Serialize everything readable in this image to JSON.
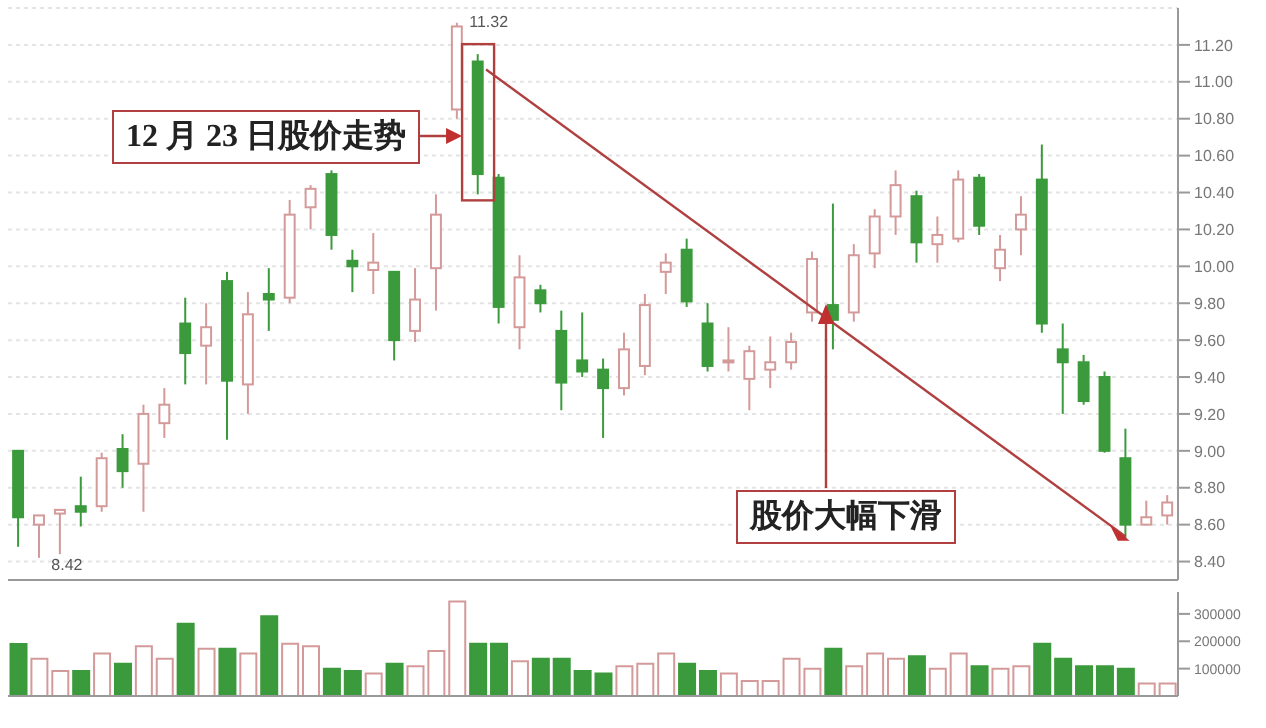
{
  "chart_data": [
    {
      "type": "candlestick",
      "categories": [
        null,
        null,
        null,
        null,
        null,
        null,
        null,
        null,
        null,
        null,
        null,
        null,
        null,
        null,
        null,
        null,
        null,
        null,
        null,
        null,
        null,
        null,
        null,
        null,
        null,
        null,
        null,
        null,
        null,
        null,
        null,
        null,
        null,
        null,
        null,
        null,
        null,
        null,
        null,
        null,
        null,
        null,
        null,
        null,
        null,
        null,
        null,
        null,
        null,
        null,
        null,
        null,
        null,
        null,
        null,
        null
      ],
      "ohlc": [
        [
          9.0,
          9.0,
          8.48,
          8.64
        ],
        [
          8.6,
          8.65,
          8.42,
          8.65
        ],
        [
          8.66,
          8.68,
          8.44,
          8.68
        ],
        [
          8.7,
          8.86,
          8.59,
          8.67
        ],
        [
          8.7,
          8.99,
          8.67,
          8.96
        ],
        [
          9.01,
          9.09,
          8.8,
          8.89
        ],
        [
          8.93,
          9.25,
          8.67,
          9.2
        ],
        [
          9.15,
          9.34,
          9.07,
          9.25
        ],
        [
          9.69,
          9.83,
          9.36,
          9.53
        ],
        [
          9.57,
          9.8,
          9.36,
          9.67
        ],
        [
          9.92,
          9.97,
          9.06,
          9.38
        ],
        [
          9.36,
          9.86,
          9.2,
          9.74
        ],
        [
          9.85,
          9.99,
          9.65,
          9.82
        ],
        [
          9.83,
          10.36,
          9.8,
          10.28
        ],
        [
          10.32,
          10.44,
          10.2,
          10.42
        ],
        [
          10.5,
          10.52,
          10.09,
          10.17
        ],
        [
          10.03,
          10.09,
          9.86,
          10.0
        ],
        [
          9.98,
          10.18,
          9.85,
          10.02
        ],
        [
          9.97,
          9.97,
          9.49,
          9.6
        ],
        [
          9.65,
          9.99,
          9.59,
          9.82
        ],
        [
          9.99,
          10.39,
          9.76,
          10.28
        ],
        [
          10.85,
          11.32,
          10.8,
          11.3
        ],
        [
          11.11,
          11.15,
          10.39,
          10.5
        ],
        [
          10.48,
          10.5,
          9.69,
          9.78
        ],
        [
          9.67,
          10.06,
          9.55,
          9.94
        ],
        [
          9.87,
          9.9,
          9.75,
          9.8
        ],
        [
          9.65,
          9.76,
          9.22,
          9.37
        ],
        [
          9.49,
          9.75,
          9.4,
          9.43
        ],
        [
          9.44,
          9.5,
          9.07,
          9.34
        ],
        [
          9.34,
          9.64,
          9.3,
          9.55
        ],
        [
          9.46,
          9.85,
          9.41,
          9.79
        ],
        [
          9.97,
          10.07,
          9.85,
          10.02
        ],
        [
          10.09,
          10.15,
          9.78,
          9.81
        ],
        [
          9.69,
          9.8,
          9.43,
          9.46
        ],
        [
          9.48,
          9.67,
          9.43,
          9.49
        ],
        [
          9.39,
          9.57,
          9.22,
          9.54
        ],
        [
          9.44,
          9.62,
          9.34,
          9.48
        ],
        [
          9.48,
          9.64,
          9.44,
          9.59
        ],
        [
          9.75,
          10.08,
          9.7,
          10.04
        ],
        [
          9.79,
          10.34,
          9.55,
          9.71
        ],
        [
          9.75,
          10.12,
          9.7,
          10.06
        ],
        [
          10.07,
          10.31,
          9.99,
          10.27
        ],
        [
          10.27,
          10.52,
          10.17,
          10.44
        ],
        [
          10.38,
          10.41,
          10.02,
          10.13
        ],
        [
          10.12,
          10.27,
          10.02,
          10.17
        ],
        [
          10.15,
          10.52,
          10.13,
          10.47
        ],
        [
          10.48,
          10.5,
          10.17,
          10.22
        ],
        [
          9.99,
          10.17,
          9.92,
          10.09
        ],
        [
          10.2,
          10.38,
          10.06,
          10.28
        ],
        [
          10.47,
          10.66,
          9.64,
          9.69
        ],
        [
          9.55,
          9.69,
          9.2,
          9.48
        ],
        [
          9.48,
          9.52,
          9.25,
          9.27
        ],
        [
          9.4,
          9.43,
          8.99,
          9.0
        ],
        [
          8.96,
          9.12,
          8.52,
          8.6
        ],
        [
          8.6,
          8.73,
          8.6,
          8.64
        ],
        [
          8.65,
          8.76,
          8.6,
          8.72
        ]
      ],
      "colors": [
        "#3b9a3b",
        "#d49a9a",
        "#d49a9a",
        "#3b9a3b",
        "#d49a9a",
        "#3b9a3b",
        "#d49a9a",
        "#d49a9a",
        "#3b9a3b",
        "#d49a9a",
        "#3b9a3b",
        "#d49a9a",
        "#3b9a3b",
        "#d49a9a",
        "#d49a9a",
        "#3b9a3b",
        "#3b9a3b",
        "#d49a9a",
        "#3b9a3b",
        "#d49a9a",
        "#d49a9a",
        "#d49a9a",
        "#3b9a3b",
        "#3b9a3b",
        "#d49a9a",
        "#3b9a3b",
        "#3b9a3b",
        "#3b9a3b",
        "#3b9a3b",
        "#d49a9a",
        "#d49a9a",
        "#d49a9a",
        "#3b9a3b",
        "#3b9a3b",
        "#d49a9a",
        "#d49a9a",
        "#d49a9a",
        "#d49a9a",
        "#d49a9a",
        "#3b9a3b",
        "#d49a9a",
        "#d49a9a",
        "#d49a9a",
        "#3b9a3b",
        "#d49a9a",
        "#d49a9a",
        "#3b9a3b",
        "#d49a9a",
        "#d49a9a",
        "#3b9a3b",
        "#3b9a3b",
        "#3b9a3b",
        "#3b9a3b",
        "#3b9a3b",
        "#d49a9a",
        "#d49a9a"
      ],
      "ylim": [
        8.3,
        11.4
      ],
      "yticks": [
        {
          "value": 8.4,
          "label": "8.40"
        },
        {
          "value": 8.6,
          "label": "8.60"
        },
        {
          "value": 8.8,
          "label": "8.80"
        },
        {
          "value": 9.0,
          "label": "9.00"
        },
        {
          "value": 9.2,
          "label": "9.20"
        },
        {
          "value": 9.4,
          "label": "9.40"
        },
        {
          "value": 9.6,
          "label": "9.60"
        },
        {
          "value": 9.8,
          "label": "9.80"
        },
        {
          "value": 10.0,
          "label": "10.00"
        },
        {
          "value": 10.2,
          "label": "10.20"
        },
        {
          "value": 10.4,
          "label": "10.40"
        },
        {
          "value": 10.6,
          "label": "10.60"
        },
        {
          "value": 10.8,
          "label": "10.80"
        },
        {
          "value": 11.0,
          "label": "11.00"
        },
        {
          "value": 11.2,
          "label": "11.20"
        }
      ],
      "grid": "y",
      "annotations": [
        "11.32",
        "8.42",
        "12 月 23 日股价走势",
        "股价大幅下滑"
      ]
    },
    {
      "type": "bar",
      "categories": [
        null,
        null,
        null,
        null,
        null,
        null,
        null,
        null,
        null,
        null,
        null,
        null,
        null,
        null,
        null,
        null,
        null,
        null,
        null,
        null,
        null,
        null,
        null,
        null,
        null,
        null,
        null,
        null,
        null,
        null,
        null,
        null,
        null,
        null,
        null,
        null,
        null,
        null,
        null,
        null,
        null,
        null,
        null,
        null,
        null,
        null,
        null,
        null,
        null,
        null,
        null,
        null,
        null,
        null,
        null,
        null
      ],
      "values": [
        190000,
        136000,
        91000,
        91000,
        155000,
        118000,
        182000,
        136000,
        264000,
        173000,
        173000,
        155000,
        291000,
        191000,
        182000,
        100000,
        91000,
        82000,
        118000,
        109000,
        164000,
        345000,
        191000,
        191000,
        127000,
        136000,
        136000,
        91000,
        82000,
        109000,
        118000,
        155000,
        118000,
        91000,
        82000,
        55000,
        55000,
        136000,
        100000,
        173000,
        109000,
        155000,
        136000,
        145000,
        100000,
        155000,
        109000,
        100000,
        109000,
        191000,
        136000,
        109000,
        109000,
        100000,
        46000,
        46000
      ],
      "colors": [
        "#3b9a3b",
        "#d49a9a",
        "#d49a9a",
        "#3b9a3b",
        "#d49a9a",
        "#3b9a3b",
        "#d49a9a",
        "#d49a9a",
        "#3b9a3b",
        "#d49a9a",
        "#3b9a3b",
        "#d49a9a",
        "#3b9a3b",
        "#d49a9a",
        "#d49a9a",
        "#3b9a3b",
        "#3b9a3b",
        "#d49a9a",
        "#3b9a3b",
        "#d49a9a",
        "#d49a9a",
        "#d49a9a",
        "#3b9a3b",
        "#3b9a3b",
        "#d49a9a",
        "#3b9a3b",
        "#3b9a3b",
        "#3b9a3b",
        "#3b9a3b",
        "#d49a9a",
        "#d49a9a",
        "#d49a9a",
        "#3b9a3b",
        "#3b9a3b",
        "#d49a9a",
        "#d49a9a",
        "#d49a9a",
        "#d49a9a",
        "#d49a9a",
        "#3b9a3b",
        "#d49a9a",
        "#d49a9a",
        "#d49a9a",
        "#3b9a3b",
        "#d49a9a",
        "#d49a9a",
        "#3b9a3b",
        "#d49a9a",
        "#d49a9a",
        "#3b9a3b",
        "#3b9a3b",
        "#3b9a3b",
        "#3b9a3b",
        "#3b9a3b",
        "#d49a9a",
        "#d49a9a"
      ],
      "ylim": [
        0,
        380000
      ],
      "yticks": [
        100000,
        200000,
        300000
      ]
    }
  ]
}
